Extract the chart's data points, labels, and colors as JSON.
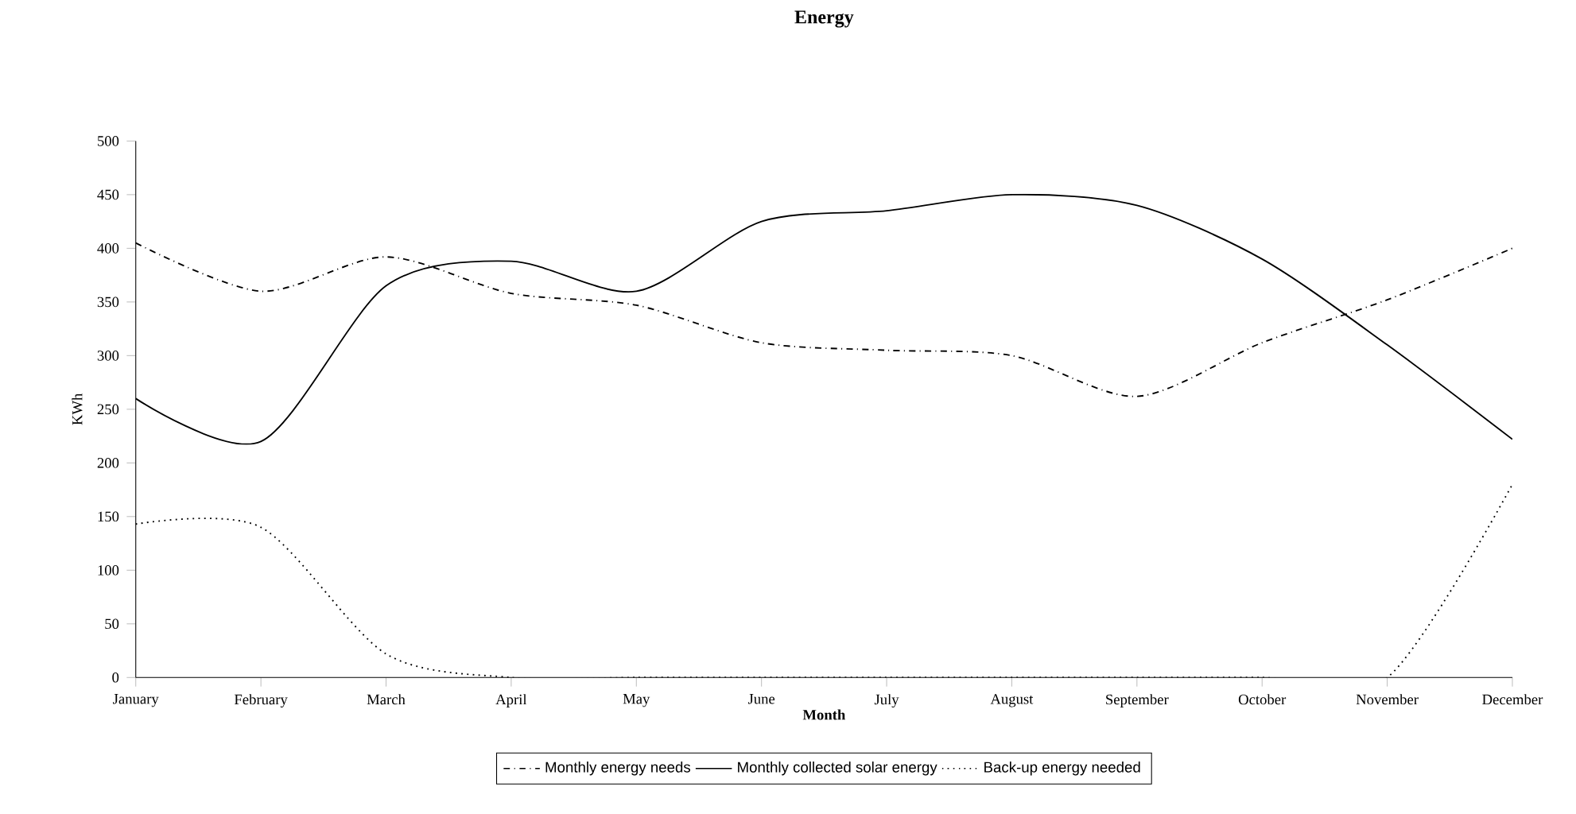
{
  "chart_data": {
    "type": "line",
    "title": "Energy",
    "xlabel": "Month",
    "ylabel": "KWh",
    "categories": [
      "January",
      "February",
      "March",
      "April",
      "May",
      "June",
      "July",
      "August",
      "September",
      "October",
      "November",
      "December"
    ],
    "series": [
      {
        "name": "Monthly energy needs",
        "color": "#000000",
        "line_style": "dashdotted",
        "values": [
          405,
          360,
          392,
          358,
          347,
          312,
          305,
          300,
          262,
          312,
          352,
          400
        ]
      },
      {
        "name": "Monthly collected solar energy",
        "color": "#000000",
        "line_style": "solid",
        "values": [
          260,
          220,
          365,
          388,
          360,
          425,
          435,
          450,
          440,
          390,
          310,
          222
        ]
      },
      {
        "name": "Back-up energy needed",
        "color": "#000000",
        "line_style": "dotted",
        "values": [
          143,
          140,
          22,
          0,
          0,
          0,
          0,
          0,
          0,
          0,
          0,
          180
        ]
      }
    ],
    "ylim": [
      0,
      500
    ],
    "yticks": [
      0,
      50,
      100,
      150,
      200,
      250,
      300,
      350,
      400,
      450,
      500
    ],
    "legend": "bottom",
    "marker": "none",
    "grid": false
  }
}
